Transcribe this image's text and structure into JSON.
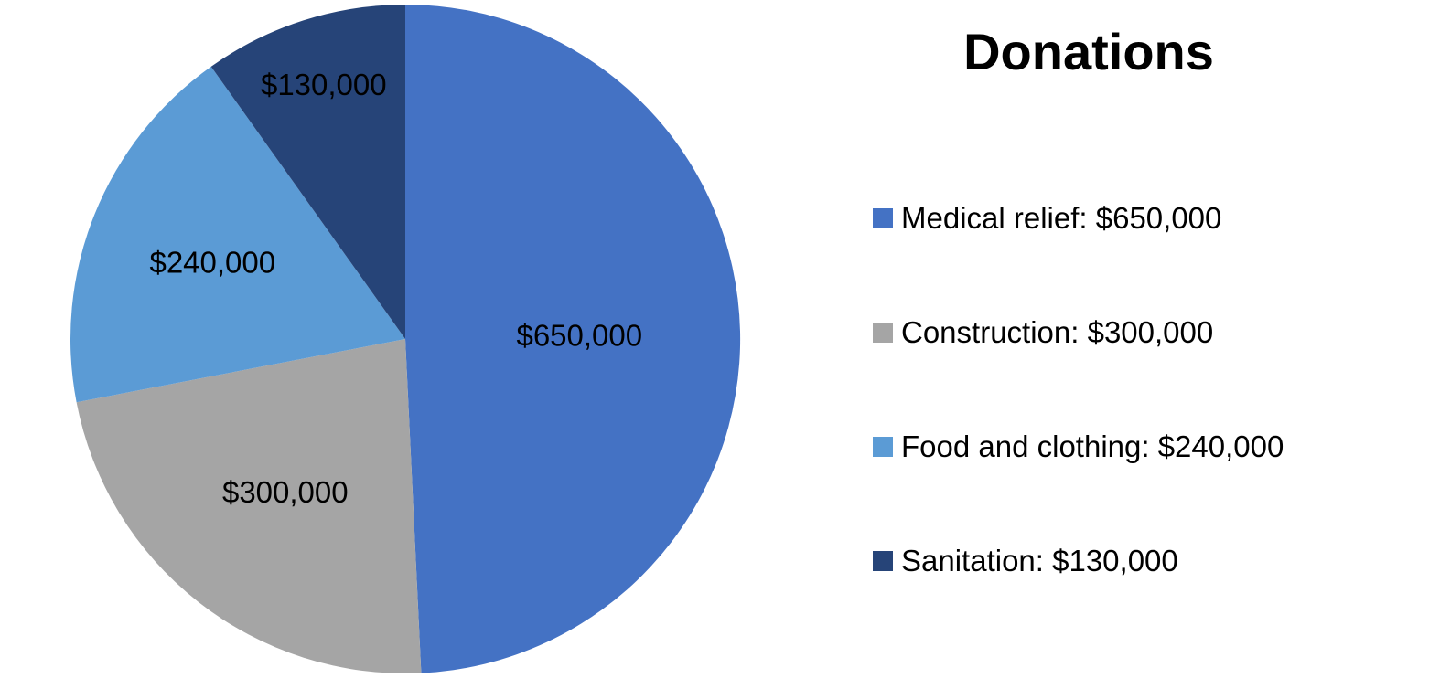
{
  "chart_data": {
    "type": "pie",
    "title": "Donations",
    "categories": [
      "Medical relief",
      "Construction",
      "Food and clothing",
      "Sanitation"
    ],
    "values": [
      650000,
      300000,
      240000,
      130000
    ],
    "value_labels": [
      "$650,000",
      "$300,000",
      "$240,000",
      "$130,000"
    ],
    "colors": [
      "#4472C4",
      "#A5A5A5",
      "#5B9BD5",
      "#264478"
    ],
    "start_angle_deg": 0,
    "direction": "clockwise",
    "legend_position": "right",
    "legend": [
      {
        "text": "Medical relief: $650,000"
      },
      {
        "text": "Construction: $300,000"
      },
      {
        "text": "Food and clothing: $240,000"
      },
      {
        "text": "Sanitation: $130,000"
      }
    ]
  }
}
